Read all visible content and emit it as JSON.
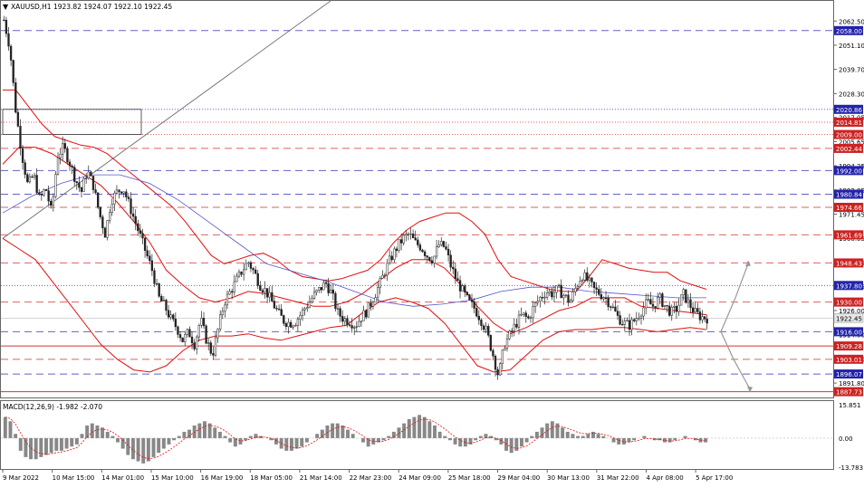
{
  "chart_data": {
    "type": "candlestick",
    "title": "XAUUSD,H1  1923.82 1924.07 1922.10 1922.45",
    "y_axis_ticks": [
      "2062.50",
      "2051.10",
      "2039.70",
      "2028.30",
      "2017.05",
      "2005.65",
      "1994.25",
      "1982.85",
      "1971.45",
      "1960.05",
      "1948.65",
      "1937.25",
      "1926.00",
      "1914.60",
      "1903.20",
      "1891.80"
    ],
    "x_axis_ticks": [
      "9 Mar 2022",
      "10 Mar 15:00",
      "14 Mar 01:00",
      "15 Mar 10:00",
      "16 Mar 19:00",
      "18 Mar 05:00",
      "21 Mar 14:00",
      "22 Mar 23:00",
      "24 Mar 09:00",
      "25 Mar 18:00",
      "29 Mar 04:00",
      "30 Mar 13:00",
      "31 Mar 22:00",
      "4 Apr 08:00",
      "5 Apr 17:00"
    ],
    "ylim": [
      1885,
      2072
    ],
    "current_price": "1922.45",
    "levels": [
      {
        "label": "2058.00",
        "value": 2058.0,
        "color": "#2222aa",
        "style": "dash"
      },
      {
        "label": "2020.86",
        "value": 2020.86,
        "color": "#2222aa",
        "style": "dot"
      },
      {
        "label": "2014.81",
        "value": 2014.81,
        "color": "#cc2222",
        "style": "dot"
      },
      {
        "label": "2009.00",
        "value": 2009.0,
        "color": "#cc2222",
        "style": "dot"
      },
      {
        "label": "2002.44",
        "value": 2002.44,
        "color": "#cc2222",
        "style": "dash"
      },
      {
        "label": "1992.00",
        "value": 1992.0,
        "color": "#2222aa",
        "style": "dash"
      },
      {
        "label": "1980.84",
        "value": 1980.84,
        "color": "#2222aa",
        "style": "dash"
      },
      {
        "label": "1974.66",
        "value": 1974.66,
        "color": "#cc2222",
        "style": "dash"
      },
      {
        "label": "1961.69",
        "value": 1961.69,
        "color": "#cc2222",
        "style": "dash"
      },
      {
        "label": "1948.43",
        "value": 1948.43,
        "color": "#cc2222",
        "style": "dash"
      },
      {
        "label": "1937.80",
        "value": 1937.8,
        "color": "#2222aa",
        "style": "dot"
      },
      {
        "label": "1930.00",
        "value": 1930.0,
        "color": "#cc2222",
        "style": "dash"
      },
      {
        "label": "1916.00",
        "value": 1916.0,
        "color": "#2222aa",
        "style": "dash"
      },
      {
        "label": "1909.28",
        "value": 1909.28,
        "color": "#cc2222",
        "style": "solid"
      },
      {
        "label": "1903.01",
        "value": 1903.01,
        "color": "#cc2222",
        "style": "dash"
      },
      {
        "label": "1896.07",
        "value": 1896.07,
        "color": "#2222aa",
        "style": "dash"
      },
      {
        "label": "1887.73",
        "value": 1887.73,
        "color": "#cc2222",
        "style": "solid"
      }
    ],
    "price_path": [
      2063,
      2050,
      2020,
      2000,
      1985,
      1990,
      1978,
      1984,
      1972,
      1999,
      2003,
      1996,
      1988,
      1982,
      1992,
      1985,
      1972,
      1962,
      1978,
      1982,
      1984,
      1976,
      1968,
      1960,
      1952,
      1944,
      1932,
      1928,
      1922,
      1918,
      1912,
      1916,
      1910,
      1922,
      1912,
      1905,
      1918,
      1930,
      1935,
      1940,
      1945,
      1949,
      1944,
      1938,
      1935,
      1930,
      1925,
      1921,
      1920,
      1921,
      1925,
      1929,
      1933,
      1936,
      1939,
      1934,
      1925,
      1922,
      1921,
      1919,
      1923,
      1926,
      1932,
      1938,
      1945,
      1951,
      1956,
      1960,
      1962,
      1958,
      1956,
      1952,
      1950,
      1957,
      1956,
      1947,
      1940,
      1935,
      1930,
      1927,
      1922,
      1916,
      1906,
      1895,
      1910,
      1915,
      1920,
      1924,
      1922,
      1928,
      1932,
      1935,
      1934,
      1936,
      1933,
      1930,
      1937,
      1943,
      1940,
      1936,
      1934,
      1932,
      1928,
      1923,
      1920,
      1919,
      1922,
      1926,
      1930,
      1928,
      1932,
      1928,
      1925,
      1927,
      1934,
      1929,
      1925,
      1923,
      1922.45
    ],
    "bollinger_upper": [
      2030,
      2030,
      2022,
      2014,
      2008,
      2006,
      2004,
      2003,
      2000,
      1995,
      1990,
      1985,
      1980,
      1975,
      1968,
      1960,
      1952,
      1948,
      1950,
      1952,
      1953,
      1950,
      1945,
      1942,
      1941,
      1940,
      1941,
      1943,
      1945,
      1950,
      1958,
      1964,
      1968,
      1970,
      1972,
      1972,
      1968,
      1962,
      1950,
      1942,
      1940,
      1938,
      1936,
      1935,
      1935,
      1942,
      1950,
      1948,
      1946,
      1945,
      1944,
      1944,
      1940,
      1938,
      1936
    ],
    "bollinger_middle": [
      1995,
      2003,
      2003,
      2000,
      1995,
      1990,
      1985,
      1977,
      1968,
      1958,
      1945,
      1938,
      1932,
      1930,
      1932,
      1935,
      1934,
      1932,
      1930,
      1928,
      1928,
      1930,
      1934,
      1940,
      1946,
      1950,
      1950,
      1946,
      1938,
      1928,
      1920,
      1915,
      1918,
      1922,
      1926,
      1928,
      1932,
      1932,
      1932,
      1928,
      1927,
      1926,
      1925,
      1924
    ],
    "bollinger_lower": [
      1960,
      1955,
      1950,
      1940,
      1930,
      1920,
      1910,
      1903,
      1898,
      1897,
      1900,
      1907,
      1912,
      1914,
      1914,
      1915,
      1913,
      1912,
      1914,
      1916,
      1918,
      1919,
      1925,
      1930,
      1932,
      1930,
      1927,
      1920,
      1910,
      1900,
      1897,
      1898,
      1905,
      1912,
      1916,
      1917,
      1917,
      1918,
      1918,
      1917,
      1916,
      1917,
      1918,
      1917
    ],
    "ma_long": [
      1972,
      1980,
      1986,
      1990,
      1990,
      1986,
      1978,
      1968,
      1958,
      1948,
      1944,
      1940,
      1935,
      1930,
      1928,
      1929,
      1931,
      1935,
      1937,
      1937,
      1935,
      1934,
      1933,
      1932,
      1932
    ],
    "projection": {
      "start": 1916,
      "up_targets": [
        1932,
        1948
      ],
      "down_targets": [
        1903,
        1889
      ]
    },
    "macd": {
      "label": "MACD(12,26,9) -1.982 -2.070",
      "ticks": [
        "15.851",
        "0.00",
        "-13.783"
      ],
      "range": [
        -13.783,
        15.851
      ],
      "histogram": [
        10,
        8,
        2,
        -6,
        -9,
        -10,
        -10,
        -9,
        -8,
        -7,
        -6,
        -6,
        -5,
        -4,
        -3,
        2,
        6,
        7,
        6,
        5,
        3,
        1,
        -2,
        -5,
        -8,
        -10,
        -11,
        -12,
        -11,
        -9,
        -7,
        -5,
        -3,
        -1,
        1,
        3,
        4,
        6,
        7,
        8,
        7,
        5,
        3,
        1,
        -2,
        -4,
        -3,
        -1,
        1,
        2,
        1,
        0,
        -1,
        -3,
        -5,
        -6,
        -6,
        -5,
        -4,
        -2,
        0,
        2,
        4,
        6,
        7,
        7,
        6,
        4,
        2,
        0,
        -2,
        -4,
        -3,
        -2,
        -1,
        1,
        3,
        5,
        7,
        9,
        10,
        11,
        10,
        8,
        6,
        3,
        1,
        -1,
        -3,
        -4,
        -4,
        -3,
        -1,
        1,
        2,
        1,
        -1,
        -3,
        -6,
        -7,
        -6,
        -4,
        -2,
        1,
        3,
        5,
        7,
        8,
        7,
        5,
        3,
        2,
        1,
        1,
        2,
        3,
        2,
        1,
        0,
        -2,
        -3,
        -3,
        -2,
        -1,
        0,
        1,
        0,
        -1,
        -1,
        -2,
        -2,
        -1,
        0,
        1,
        0,
        -1,
        -2,
        -2
      ]
    }
  }
}
